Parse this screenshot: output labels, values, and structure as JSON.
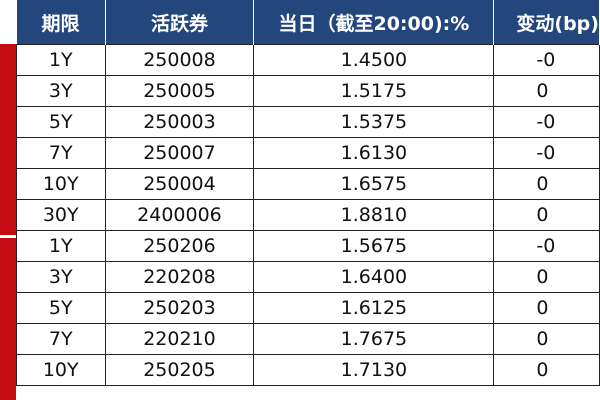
{
  "header": {
    "tenor": "期限",
    "active_bond": "活跃券",
    "today": "当日（截至20:00):%",
    "change": "变动(bp)"
  },
  "rows": [
    {
      "tenor": "1Y",
      "code": "250008",
      "value": "1.4500",
      "change": "-0"
    },
    {
      "tenor": "3Y",
      "code": "250005",
      "value": "1.5175",
      "change": "0"
    },
    {
      "tenor": "5Y",
      "code": "250003",
      "value": "1.5375",
      "change": "-0"
    },
    {
      "tenor": "7Y",
      "code": "250007",
      "value": "1.6130",
      "change": "-0"
    },
    {
      "tenor": "10Y",
      "code": "250004",
      "value": "1.6575",
      "change": "0"
    },
    {
      "tenor": "30Y",
      "code": "2400006",
      "value": "1.8810",
      "change": "0"
    },
    {
      "tenor": "1Y",
      "code": "250206",
      "value": "1.5675",
      "change": "-0"
    },
    {
      "tenor": "3Y",
      "code": "220208",
      "value": "1.6400",
      "change": "0"
    },
    {
      "tenor": "5Y",
      "code": "250203",
      "value": "1.6125",
      "change": "0"
    },
    {
      "tenor": "7Y",
      "code": "220210",
      "value": "1.7675",
      "change": "0"
    },
    {
      "tenor": "10Y",
      "code": "250205",
      "value": "1.7130",
      "change": "0"
    }
  ],
  "colors": {
    "header_bg": "#23467d",
    "side_band": "#c30d13"
  }
}
